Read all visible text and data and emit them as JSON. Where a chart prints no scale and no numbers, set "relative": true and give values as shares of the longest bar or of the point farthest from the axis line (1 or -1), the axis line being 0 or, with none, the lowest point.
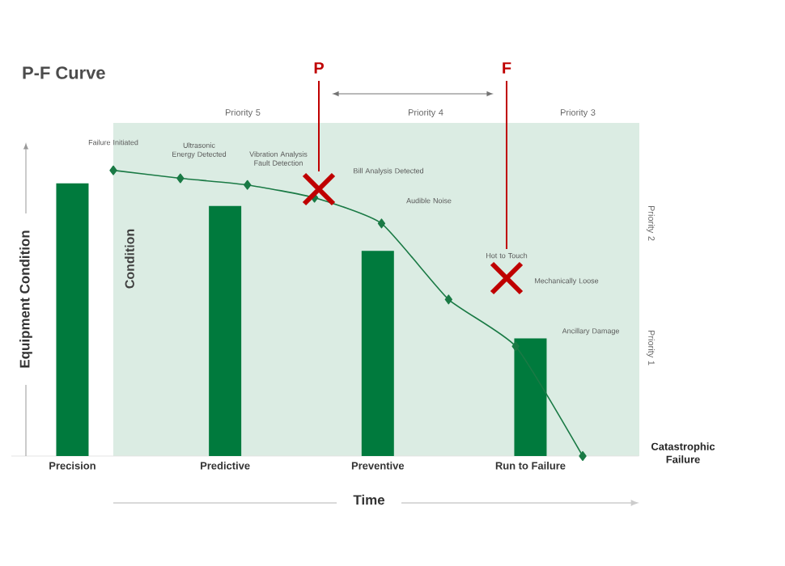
{
  "chart_data": [
    {
      "type": "bar",
      "title": "P-F Curve",
      "xlabel": "Time",
      "ylabel": "Equipment Condition",
      "relative": true,
      "categories": [
        "Precision",
        "Predictive",
        "Preventive",
        "Run to Failure"
      ],
      "values": [
        1,
        0.917,
        0.752,
        0.431
      ],
      "color": "#007a3d",
      "annotations": [
        "P",
        "F",
        "Priority 5",
        "Priority 4",
        "Priority 3",
        "Priority 2",
        "Priority 1",
        "Condition"
      ]
    },
    {
      "type": "line",
      "relative": true,
      "marker": "diamond",
      "categories": [
        null,
        null,
        null,
        null,
        null,
        null,
        null,
        null
      ],
      "values": [
        1,
        0.972,
        0.949,
        0.904,
        0.814,
        0.548,
        0.384,
        0
      ],
      "color": "#1a7a45",
      "annotations": [
        "Failure Initiated",
        "Ultrasonic Energy Detected",
        "Vibration Analysis Fault Detection",
        "Bill Analysis Detected",
        "Audible Noise",
        "Mechanically Loose",
        "Ancillary Damage",
        "Catastrophic Failure",
        "Hot to Touch"
      ]
    }
  ]
}
